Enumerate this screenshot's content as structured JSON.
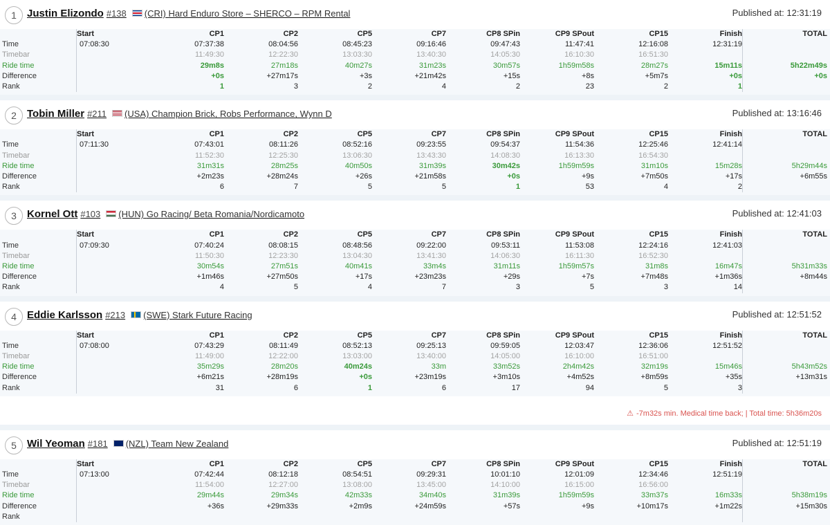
{
  "columns": [
    "Start",
    "CP1",
    "CP2",
    "CP5",
    "CP7",
    "CP8 SPin",
    "CP9 SPout",
    "CP15",
    "Finish",
    "TOTAL"
  ],
  "row_labels": [
    "Time",
    "Timebar",
    "Ride time",
    "Difference",
    "Rank"
  ],
  "published_prefix": "Published at:",
  "riders": [
    {
      "pos": "1",
      "name": "Justin Elizondo",
      "number": "#138",
      "country": "(CRI)",
      "team": "Hard Enduro Store – SHERCO – RPM Rental",
      "published": "12:31:19",
      "time": [
        "07:08:30",
        "07:37:38",
        "08:04:56",
        "08:45:23",
        "09:16:46",
        "09:47:43",
        "11:47:41",
        "12:16:08",
        "12:31:19",
        ""
      ],
      "timebar": [
        "",
        "11:49:30",
        "12:22:30",
        "13:03:30",
        "13:40:30",
        "14:05:30",
        "16:10:30",
        "16:51:30",
        "",
        ""
      ],
      "ride": [
        "",
        "29m8s",
        "27m18s",
        "40m27s",
        "31m23s",
        "30m57s",
        "1h59m58s",
        "28m27s",
        "15m11s",
        "5h22m49s"
      ],
      "diff": [
        "",
        "+0s",
        "+27m17s",
        "+3s",
        "+21m42s",
        "+15s",
        "+8s",
        "+5m7s",
        "+0s",
        "+0s"
      ],
      "rank": [
        "",
        "1",
        "3",
        "2",
        "4",
        "2",
        "23",
        "2",
        "1",
        ""
      ]
    },
    {
      "pos": "2",
      "name": "Tobin Miller",
      "number": "#211",
      "country": "(USA)",
      "team": "Champion Brick, Robs Performance, Wynn D",
      "published": "13:16:46",
      "time": [
        "07:11:30",
        "07:43:01",
        "08:11:26",
        "08:52:16",
        "09:23:55",
        "09:54:37",
        "11:54:36",
        "12:25:46",
        "12:41:14",
        ""
      ],
      "timebar": [
        "",
        "11:52:30",
        "12:25:30",
        "13:06:30",
        "13:43:30",
        "14:08:30",
        "16:13:30",
        "16:54:30",
        "",
        ""
      ],
      "ride": [
        "",
        "31m31s",
        "28m25s",
        "40m50s",
        "31m39s",
        "30m42s",
        "1h59m59s",
        "31m10s",
        "15m28s",
        "5h29m44s"
      ],
      "diff": [
        "",
        "+2m23s",
        "+28m24s",
        "+26s",
        "+21m58s",
        "+0s",
        "+9s",
        "+7m50s",
        "+17s",
        "+6m55s"
      ],
      "rank": [
        "",
        "6",
        "7",
        "5",
        "5",
        "1",
        "53",
        "4",
        "2",
        ""
      ]
    },
    {
      "pos": "3",
      "name": "Kornel Ott",
      "number": "#103",
      "country": "(HUN)",
      "team": "Go Racing/ Beta Romania/Nordicamoto",
      "published": "12:41:03",
      "time": [
        "07:09:30",
        "07:40:24",
        "08:08:15",
        "08:48:56",
        "09:22:00",
        "09:53:11",
        "11:53:08",
        "12:24:16",
        "12:41:03",
        ""
      ],
      "timebar": [
        "",
        "11:50:30",
        "12:23:30",
        "13:04:30",
        "13:41:30",
        "14:06:30",
        "16:11:30",
        "16:52:30",
        "",
        ""
      ],
      "ride": [
        "",
        "30m54s",
        "27m51s",
        "40m41s",
        "33m4s",
        "31m11s",
        "1h59m57s",
        "31m8s",
        "16m47s",
        "5h31m33s"
      ],
      "diff": [
        "",
        "+1m46s",
        "+27m50s",
        "+17s",
        "+23m23s",
        "+29s",
        "+7s",
        "+7m48s",
        "+1m36s",
        "+8m44s"
      ],
      "rank": [
        "",
        "4",
        "5",
        "4",
        "7",
        "3",
        "5",
        "3",
        "14",
        ""
      ]
    },
    {
      "pos": "4",
      "name": "Eddie Karlsson",
      "number": "#213",
      "country": "(SWE)",
      "team": "Stark Future Racing",
      "published": "12:51:52",
      "time": [
        "07:08:00",
        "07:43:29",
        "08:11:49",
        "08:52:13",
        "09:25:13",
        "09:59:05",
        "12:03:47",
        "12:36:06",
        "12:51:52",
        ""
      ],
      "timebar": [
        "",
        "11:49:00",
        "12:22:00",
        "13:03:00",
        "13:40:00",
        "14:05:00",
        "16:10:00",
        "16:51:00",
        "",
        ""
      ],
      "ride": [
        "",
        "35m29s",
        "28m20s",
        "40m24s",
        "33m",
        "33m52s",
        "2h4m42s",
        "32m19s",
        "15m46s",
        "5h43m52s"
      ],
      "diff": [
        "",
        "+6m21s",
        "+28m19s",
        "+0s",
        "+23m19s",
        "+3m10s",
        "+4m52s",
        "+8m59s",
        "+35s",
        "+13m31s"
      ],
      "rank": [
        "",
        "31",
        "6",
        "1",
        "6",
        "17",
        "94",
        "5",
        "3",
        ""
      ],
      "note": "-7m32s min. Medical time back; | Total time: 5h36m20s"
    },
    {
      "pos": "5",
      "name": "Wil Yeoman",
      "number": "#181",
      "country": "(NZL)",
      "team": "Team New Zealand",
      "published": "12:51:19",
      "time": [
        "07:13:00",
        "07:42:44",
        "08:12:18",
        "08:54:51",
        "09:29:31",
        "10:01:10",
        "12:01:09",
        "12:34:46",
        "12:51:19",
        ""
      ],
      "timebar": [
        "",
        "11:54:00",
        "12:27:00",
        "13:08:00",
        "13:45:00",
        "14:10:00",
        "16:15:00",
        "16:56:00",
        "",
        ""
      ],
      "ride": [
        "",
        "29m44s",
        "29m34s",
        "42m33s",
        "34m40s",
        "31m39s",
        "1h59m59s",
        "33m37s",
        "16m33s",
        "5h38m19s"
      ],
      "diff": [
        "",
        "+36s",
        "+29m33s",
        "+2m9s",
        "+24m59s",
        "+57s",
        "+9s",
        "+10m17s",
        "+1m22s",
        "+15m30s"
      ],
      "rank": [
        "",
        "",
        "",
        "",
        "",
        "",
        "",
        "",
        "",
        ""
      ]
    }
  ]
}
